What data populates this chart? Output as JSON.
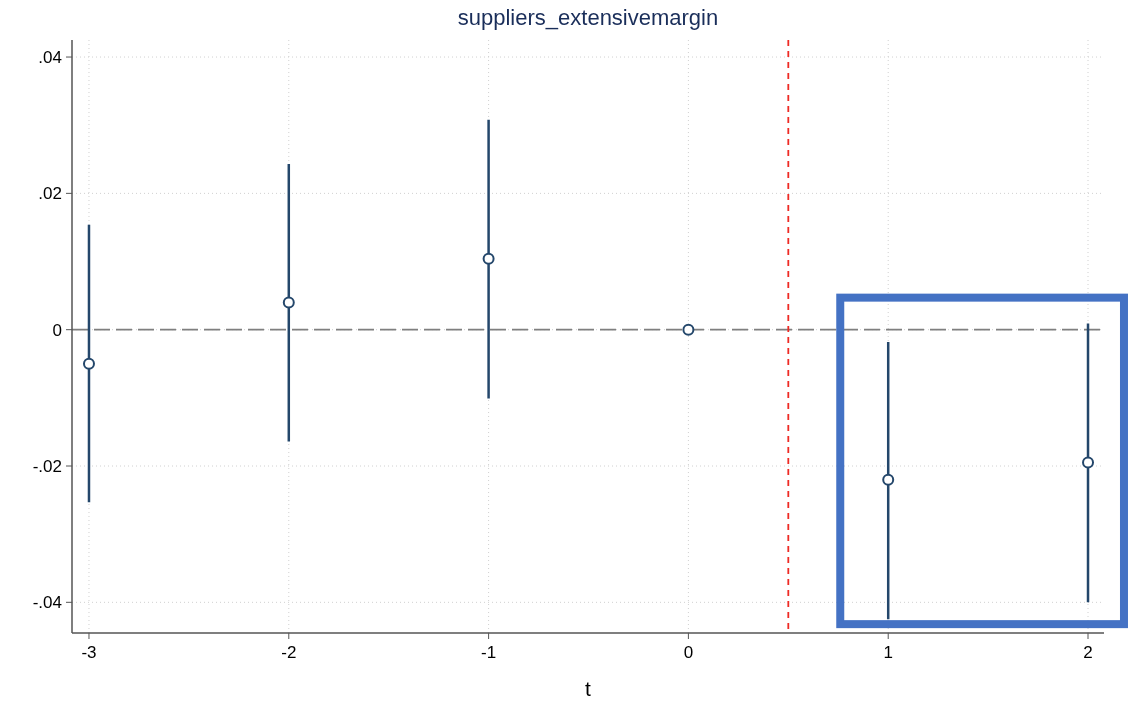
{
  "chart_data": {
    "type": "scatter",
    "title": "suppliers_extensivemargin",
    "xlabel": "t",
    "x": [
      -3,
      -2,
      -1,
      0,
      1,
      2
    ],
    "series": [
      {
        "color": "#24476b",
        "values": [
          -0.005,
          0.004,
          0.0104,
          0,
          -0.022,
          -0.0195
        ],
        "errors": [
          [
            -0.0253,
            0.0154
          ],
          [
            -0.0164,
            0.0243
          ],
          [
            -0.0101,
            0.0308
          ],
          null,
          [
            -0.0425,
            -0.0018
          ],
          [
            -0.04,
            0.0009
          ]
        ]
      }
    ],
    "marker": "circle",
    "xlim": [
      -3.085,
      2.08
    ],
    "xticks": [
      -3,
      -2,
      -1,
      0,
      1,
      2
    ],
    "ylim": [
      -0.0445,
      0.0425
    ],
    "yticks": [
      {
        "value": -0.04,
        "label": "-.04"
      },
      {
        "value": -0.02,
        "label": "-.02"
      },
      {
        "value": 0,
        "label": "0"
      },
      {
        "value": 0.02,
        "label": ".02"
      },
      {
        "value": 0.04,
        "label": ".04"
      }
    ],
    "grid": true,
    "ref_lines": [
      {
        "axis": "y",
        "value": 0,
        "color": "#7f7f7f",
        "line_style": "dashed"
      },
      {
        "axis": "x",
        "value": 0.5,
        "color": "#ee2a24",
        "line_style": "dashed"
      }
    ]
  }
}
